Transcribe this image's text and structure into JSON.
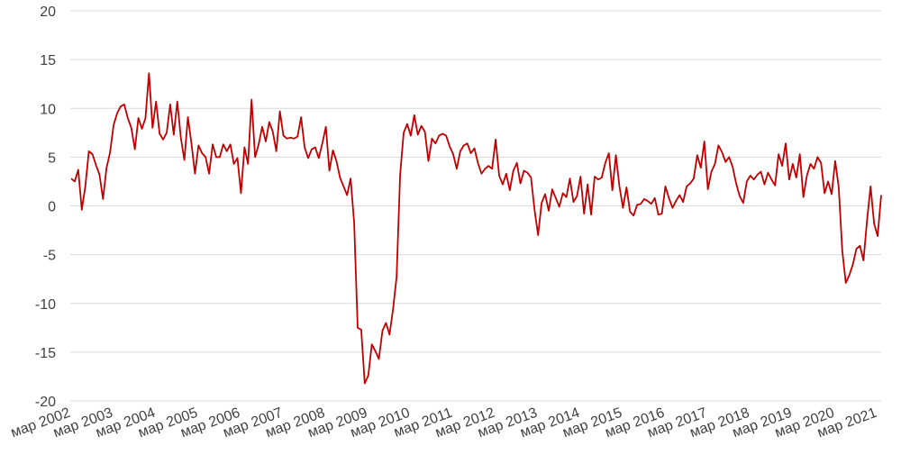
{
  "chart_data": {
    "type": "line",
    "title": "",
    "xlabel": "",
    "ylabel": "",
    "ylim": [
      -20,
      20
    ],
    "yticks": [
      "20",
      "15",
      "10",
      "5",
      "0",
      "-5",
      "-10",
      "-15",
      "-20"
    ],
    "grid": true,
    "legend": "none",
    "line_color": "#c00000",
    "xtick_labels": [
      "мар 2002",
      "мар 2003",
      "мар 2004",
      "мар 2005",
      "мар 2006",
      "мар 2007",
      "мар 2008",
      "мар 2009",
      "мар 2010",
      "мар 2011",
      "мар 2012",
      "мар 2013",
      "мар 2014",
      "мар 2015",
      "мар 2016",
      "мар 2017",
      "мар 2018",
      "мар 2019",
      "мар 2020",
      "мар 2021"
    ],
    "x_start": "2002-03",
    "x_frequency": "monthly",
    "series": [
      {
        "values": [
          2.8,
          2.5,
          3.7,
          -0.4,
          2.0,
          5.6,
          5.3,
          4.2,
          3.2,
          0.7,
          3.9,
          5.5,
          8.3,
          9.5,
          10.2,
          10.4,
          9.0,
          8.0,
          5.8,
          9.0,
          7.9,
          9.0,
          13.6,
          8.0,
          10.7,
          7.4,
          6.8,
          7.5,
          10.4,
          7.3,
          10.7,
          7.0,
          4.7,
          9.1,
          6.4,
          3.3,
          6.2,
          5.4,
          5.0,
          3.3,
          6.3,
          5.0,
          5.0,
          6.3,
          5.6,
          6.3,
          4.3,
          4.9,
          1.3,
          6.0,
          4.3,
          10.9,
          5.0,
          6.3,
          8.1,
          6.6,
          8.6,
          7.6,
          5.6,
          9.7,
          7.2,
          6.9,
          7.0,
          6.9,
          7.1,
          9.1,
          6.0,
          4.9,
          5.8,
          6.0,
          4.9,
          6.4,
          8.1,
          3.6,
          5.7,
          4.6,
          2.9,
          2.0,
          1.1,
          2.8,
          -1.7,
          -12.5,
          -12.7,
          -18.2,
          -17.4,
          -14.2,
          -14.9,
          -15.7,
          -12.8,
          -12.0,
          -13.2,
          -10.6,
          -7.3,
          3.2,
          7.5,
          8.4,
          7.2,
          9.3,
          7.3,
          8.2,
          7.6,
          4.6,
          6.9,
          6.4,
          7.2,
          7.4,
          7.2,
          6.1,
          5.3,
          3.8,
          5.6,
          6.2,
          6.4,
          5.4,
          5.9,
          4.4,
          3.3,
          3.8,
          4.1,
          3.8,
          6.8,
          3.1,
          2.2,
          3.3,
          1.6,
          3.6,
          4.4,
          2.3,
          3.6,
          3.4,
          2.9,
          -0.4,
          -3.0,
          0.3,
          1.2,
          -0.5,
          1.7,
          0.8,
          -0.1,
          1.3,
          0.9,
          2.8,
          0.4,
          1.0,
          3.0,
          -0.8,
          2.2,
          -0.9,
          3.0,
          2.7,
          2.9,
          4.4,
          5.4,
          1.6,
          5.2,
          2.0,
          -0.2,
          1.9,
          -0.6,
          -1.0,
          0.1,
          0.2,
          0.7,
          0.5,
          0.2,
          0.8,
          -0.9,
          -0.8,
          2.0,
          0.8,
          -0.2,
          0.5,
          1.1,
          0.4,
          2.0,
          2.3,
          2.8,
          5.2,
          3.9,
          6.6,
          1.7,
          3.5,
          4.3,
          6.2,
          5.5,
          4.5,
          5.0,
          4.0,
          2.3,
          1.0,
          0.3,
          2.5,
          3.1,
          2.7,
          3.2,
          3.5,
          2.2,
          3.4,
          2.7,
          2.1,
          5.3,
          4.1,
          6.4,
          2.7,
          4.3,
          2.9,
          5.3,
          0.9,
          3.1,
          4.3,
          3.8,
          5.0,
          4.4,
          1.3,
          2.5,
          1.2,
          4.6,
          1.9,
          -4.6,
          -7.9,
          -7.1,
          -6.0,
          -4.4,
          -4.1,
          -5.6,
          -1.5,
          2.0,
          -1.8,
          -3.1,
          1.1
        ]
      }
    ]
  }
}
